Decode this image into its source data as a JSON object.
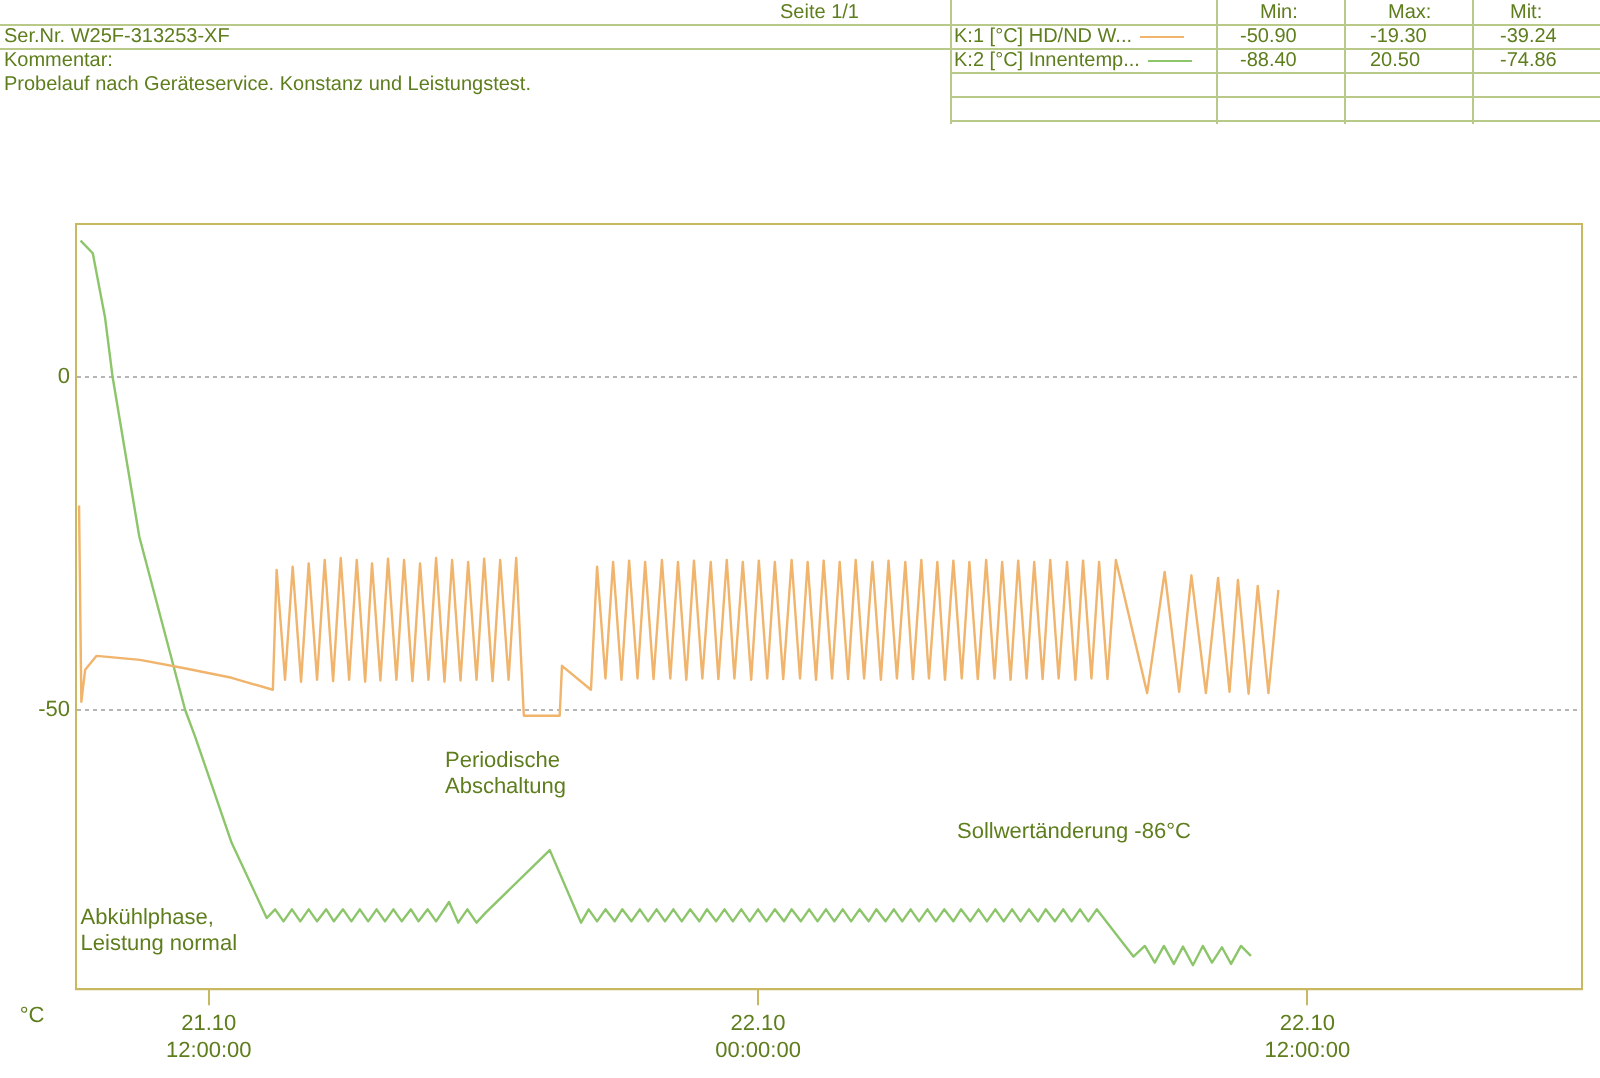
{
  "chart_data": {
    "type": "line",
    "ylabel": "°C",
    "xlim": [
      "--10-21T09:06",
      "--10-22T18:00"
    ],
    "ylim": [
      -92,
      23
    ],
    "xticks": [
      {
        "value": "--10-21T12:00",
        "label": "21.10\n12:00:00"
      },
      {
        "value": "--10-22T00:00",
        "label": "22.10\n00:00:00"
      },
      {
        "value": "--10-22T12:00",
        "label": "22.10\n12:00:00"
      }
    ],
    "yticks": [
      0,
      -50
    ],
    "grid": "y",
    "legend": "top right",
    "marker": "none",
    "line_style": "solid",
    "annotations": [
      "Seite 1/1",
      "Ser.Nr. W25F-313253-XF",
      "Kommentar:",
      "Probelauf nach Geräteservice. Konstanz und Leistungstest.",
      "Min:",
      "Max:",
      "Mit:",
      "-50.90",
      "-19.30",
      "-39.24",
      "-88.40",
      "20.50",
      "-74.86",
      "Periodische\nAbschaltung",
      "Abkühlphase,\nLeistung normal",
      "Sollwertänderung -86°C"
    ],
    "series": [
      {
        "name": "K:1 [°C] HD/ND W...",
        "color": "#f0b46c",
        "x": [
          "--10-21T09:10",
          "--10-21T09:13",
          "--10-21T09:18",
          "--10-21T09:33",
          "--10-21T10:30",
          "--10-21T11:30",
          "--10-21T12:30",
          "--10-21T13:24",
          "--10-21T13:29",
          "--10-21T13:40",
          "--10-21T13:50",
          "--10-21T14:01",
          "--10-21T14:11",
          "--10-21T14:22",
          "--10-21T14:32",
          "--10-21T14:43",
          "--10-21T14:53",
          "--10-21T15:04",
          "--10-21T15:14",
          "--10-21T15:25",
          "--10-21T15:34",
          "--10-21T15:45",
          "--10-21T15:55",
          "--10-21T16:06",
          "--10-21T16:16",
          "--10-21T16:27",
          "--10-21T16:37",
          "--10-21T16:48",
          "--10-21T16:58",
          "--10-21T17:09",
          "--10-21T17:19",
          "--10-21T17:30",
          "--10-21T17:40",
          "--10-21T17:51",
          "--10-21T18:01",
          "--10-21T18:12",
          "--10-21T18:22",
          "--10-21T18:33",
          "--10-21T18:43",
          "--10-21T18:53",
          "--10-21T19:40",
          "--10-21T19:43",
          "--10-21T20:21",
          "--10-21T20:29",
          "--10-21T20:40",
          "--10-21T20:50",
          "--10-21T21:01",
          "--10-21T21:11",
          "--10-21T21:22",
          "--10-21T21:32",
          "--10-21T21:43",
          "--10-21T21:54",
          "--10-21T22:05",
          "--10-21T22:15",
          "--10-21T22:26",
          "--10-21T22:36",
          "--10-21T22:47",
          "--10-21T22:58",
          "--10-21T23:08",
          "--10-21T23:19",
          "--10-21T23:29",
          "--10-21T23:40",
          "--10-21T23:51",
          "--10-22T00:01",
          "--10-22T00:12",
          "--10-22T00:22",
          "--10-22T00:33",
          "--10-22T00:44",
          "--10-22T00:55",
          "--10-22T01:05",
          "--10-22T01:16",
          "--10-22T01:26",
          "--10-22T01:37",
          "--10-22T01:47",
          "--10-22T01:58",
          "--10-22T02:08",
          "--10-22T02:19",
          "--10-22T02:30",
          "--10-22T02:41",
          "--10-22T02:51",
          "--10-22T03:02",
          "--10-22T03:13",
          "--10-22T03:23",
          "--10-22T03:34",
          "--10-22T03:44",
          "--10-22T03:55",
          "--10-22T04:05",
          "--10-22T04:16",
          "--10-22T04:27",
          "--10-22T04:37",
          "--10-22T04:48",
          "--10-22T04:59",
          "--10-22T05:10",
          "--10-22T05:20",
          "--10-22T05:31",
          "--10-22T05:41",
          "--10-22T05:52",
          "--10-22T06:02",
          "--10-22T06:13",
          "--10-22T06:23",
          "--10-22T06:34",
          "--10-22T06:45",
          "--10-22T06:56",
          "--10-22T07:06",
          "--10-22T07:17",
          "--10-22T07:27",
          "--10-22T07:38",
          "--10-22T07:49",
          "--10-22T08:30",
          "--10-22T08:53",
          "--10-22T09:12",
          "--10-22T09:28",
          "--10-22T09:47",
          "--10-22T10:03",
          "--10-22T10:18",
          "--10-22T10:29",
          "--10-22T10:43",
          "--10-22T10:55",
          "--10-22T11:09",
          "--10-22T11:22"
        ],
        "values": [
          -19.3,
          -48.8,
          -44,
          -41.9,
          -42.5,
          -43.8,
          -45.2,
          -47,
          -29,
          -45.5,
          -28.5,
          -45.8,
          -28,
          -45.5,
          -27.5,
          -45.7,
          -27.2,
          -45.5,
          -27.5,
          -45.8,
          -28,
          -45.6,
          -27.3,
          -45.5,
          -27.5,
          -45.7,
          -28,
          -45.5,
          -27.2,
          -45.8,
          -27.5,
          -45.6,
          -27.8,
          -45.5,
          -27.3,
          -45.7,
          -27.5,
          -45.5,
          -27.2,
          -50.9,
          -50.9,
          -43.4,
          -47,
          -28.5,
          -45.3,
          -27.8,
          -45.5,
          -27.6,
          -45.3,
          -27.8,
          -45.4,
          -27.5,
          -45.3,
          -27.8,
          -45.5,
          -27.6,
          -45.3,
          -27.8,
          -45.4,
          -27.5,
          -45.3,
          -27.8,
          -45.5,
          -27.6,
          -45.3,
          -27.8,
          -45.4,
          -27.5,
          -45.3,
          -27.8,
          -45.5,
          -27.6,
          -45.3,
          -27.8,
          -45.4,
          -27.5,
          -45.3,
          -27.8,
          -45.5,
          -27.6,
          -45.3,
          -27.8,
          -45.4,
          -27.5,
          -45.3,
          -27.8,
          -45.5,
          -27.6,
          -45.3,
          -27.8,
          -45.4,
          -27.5,
          -45.3,
          -27.8,
          -45.5,
          -27.6,
          -45.3,
          -27.8,
          -45.4,
          -27.5,
          -45.3,
          -27.8,
          -45.5,
          -27.6,
          -45.3,
          -27.8,
          -45.4,
          -27.5,
          -47.5,
          -29.3,
          -47.3,
          -29.8,
          -47.5,
          -30.2,
          -47.3,
          -30.5,
          -47.6,
          -31.4,
          -47.5,
          -32
        ]
      },
      {
        "name": "K:2 [°C] Innentemp...",
        "color": "#8cc56a",
        "x": [
          "--10-21T09:12",
          "--10-21T09:28",
          "--10-21T09:44",
          "--10-21T09:54",
          "--10-21T10:29",
          "--10-21T11:29",
          "--10-21T11:42",
          "--10-21T12:30",
          "--10-21T13:16",
          "--10-21T13:27",
          "--10-21T13:38",
          "--10-21T13:49",
          "--10-21T14:00",
          "--10-21T14:11",
          "--10-21T14:22",
          "--10-21T14:34",
          "--10-21T14:44",
          "--10-21T14:56",
          "--10-21T15:07",
          "--10-21T15:18",
          "--10-21T15:29",
          "--10-21T15:40",
          "--10-21T15:51",
          "--10-21T16:02",
          "--10-21T16:13",
          "--10-21T16:25",
          "--10-21T16:35",
          "--10-21T16:47",
          "--10-21T16:58",
          "--10-21T17:15",
          "--10-21T17:27",
          "--10-21T17:39",
          "--10-21T17:51",
          "--10-21T18:03",
          "--10-21T19:27",
          "--10-21T20:08",
          "--10-21T20:18",
          "--10-21T20:29",
          "--10-21T20:40",
          "--10-21T20:52",
          "--10-21T21:02",
          "--10-21T21:14",
          "--10-21T21:25",
          "--10-21T21:36",
          "--10-21T21:47",
          "--10-21T21:58",
          "--10-21T22:09",
          "--10-21T22:20",
          "--10-21T22:31",
          "--10-21T22:43",
          "--10-21T22:53",
          "--10-21T23:05",
          "--10-21T23:16",
          "--10-21T23:27",
          "--10-21T23:38",
          "--10-21T23:49",
          "--10-22T00:00",
          "--10-22T00:11",
          "--10-22T00:22",
          "--10-22T00:34",
          "--10-22T00:44",
          "--10-22T00:56",
          "--10-22T01:07",
          "--10-22T01:18",
          "--10-22T01:29",
          "--10-22T01:40",
          "--10-22T01:51",
          "--10-22T02:02",
          "--10-22T02:13",
          "--10-22T02:25",
          "--10-22T02:35",
          "--10-22T02:47",
          "--10-22T02:58",
          "--10-22T03:09",
          "--10-22T03:20",
          "--10-22T03:31",
          "--10-22T03:42",
          "--10-22T03:53",
          "--10-22T04:04",
          "--10-22T04:16",
          "--10-22T04:26",
          "--10-22T04:38",
          "--10-22T04:49",
          "--10-22T05:00",
          "--10-22T05:11",
          "--10-22T05:22",
          "--10-22T05:33",
          "--10-22T05:44",
          "--10-22T05:55",
          "--10-22T06:07",
          "--10-22T06:17",
          "--10-22T06:29",
          "--10-22T06:40",
          "--10-22T06:51",
          "--10-22T07:02",
          "--10-22T07:13",
          "--10-22T07:24",
          "--10-22T08:12",
          "--10-22T08:27",
          "--10-22T08:40",
          "--10-22T08:52",
          "--10-22T09:05",
          "--10-22T09:17",
          "--10-22T09:30",
          "--10-22T09:43",
          "--10-22T09:55",
          "--10-22T10:08",
          "--10-22T10:20",
          "--10-22T10:33",
          "--10-22T10:46"
        ],
        "values": [
          20.5,
          18.6,
          9,
          0,
          -24,
          -50,
          -54,
          -70,
          -81.3,
          -80,
          -81.8,
          -80,
          -81.8,
          -80,
          -81.8,
          -80,
          -81.8,
          -80,
          -81.8,
          -80,
          -81.8,
          -80,
          -81.8,
          -80,
          -81.8,
          -80,
          -81.8,
          -80,
          -81.8,
          -78.9,
          -82,
          -80,
          -82,
          -80.5,
          -71.1,
          -82,
          -80,
          -81.8,
          -80,
          -81.8,
          -80,
          -81.8,
          -80,
          -81.8,
          -80,
          -81.8,
          -80,
          -81.8,
          -80,
          -81.8,
          -80,
          -81.8,
          -80,
          -81.8,
          -80,
          -81.8,
          -80,
          -81.8,
          -80,
          -81.8,
          -80,
          -81.8,
          -80,
          -81.8,
          -80,
          -81.8,
          -80,
          -81.8,
          -80,
          -81.8,
          -80,
          -81.8,
          -80,
          -81.8,
          -80,
          -81.8,
          -80,
          -81.8,
          -80,
          -81.8,
          -80,
          -81.8,
          -80,
          -81.8,
          -80,
          -81.8,
          -80,
          -81.8,
          -80,
          -81.8,
          -80,
          -81.8,
          -80,
          -81.8,
          -80,
          -81.8,
          -80,
          -87.1,
          -85.5,
          -88,
          -85.5,
          -88.2,
          -85.6,
          -88.4,
          -85.5,
          -88,
          -85.7,
          -88.2,
          -85.5,
          -87
        ]
      }
    ]
  }
}
